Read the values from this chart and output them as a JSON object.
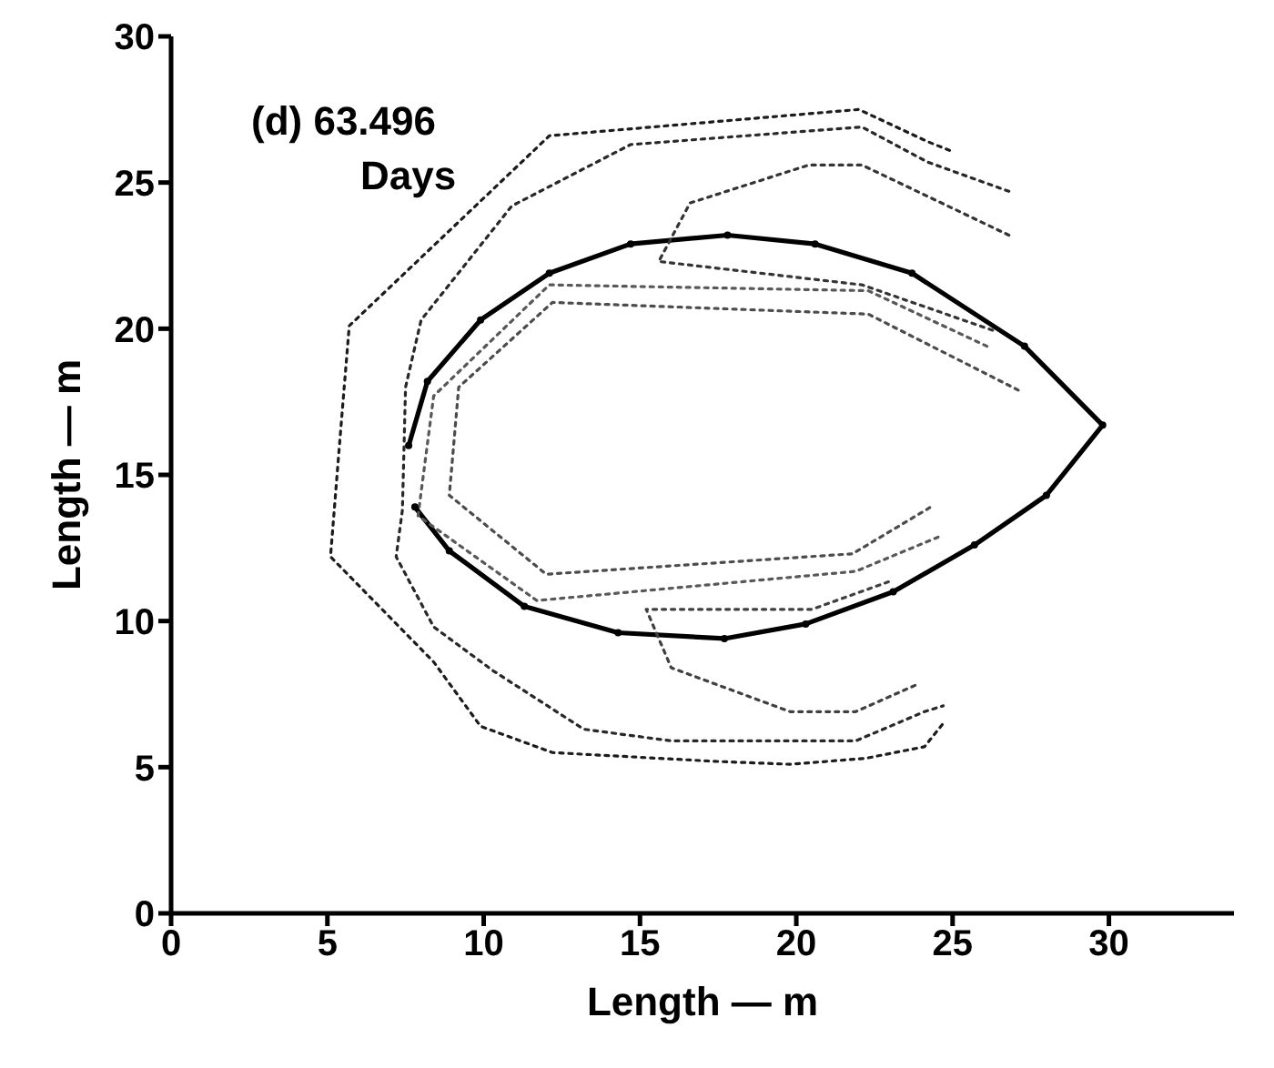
{
  "chart_data": {
    "type": "line",
    "xlabel": "Length — m",
    "ylabel": "Length — m",
    "annotations": [
      "(d) 63.496\nDays"
    ],
    "xlim": [
      0,
      34
    ],
    "ylim": [
      0,
      30
    ],
    "xticks": [
      0,
      5,
      10,
      15,
      20,
      25,
      30
    ],
    "yticks": [
      0,
      5,
      10,
      15,
      20,
      25,
      30
    ],
    "grid": false,
    "series": [
      {
        "color": "#000000",
        "line_style": "solid",
        "marker": "circle",
        "x": [
          7.6,
          8.2,
          9.9,
          12.1,
          14.7,
          17.8,
          20.6,
          23.7,
          27.3,
          29.8,
          28.0,
          25.7,
          23.1,
          20.3,
          17.7,
          14.3,
          11.3,
          8.9,
          7.8
        ],
        "values": [
          16.0,
          18.2,
          20.3,
          21.9,
          22.9,
          23.2,
          22.9,
          21.9,
          19.4,
          16.7,
          14.3,
          12.6,
          11.0,
          9.9,
          9.4,
          9.6,
          10.5,
          12.4,
          13.9
        ]
      },
      {
        "color": "#1c1c1c",
        "line_style": "dotted",
        "marker": "none",
        "x": [
          24.9,
          24.2,
          22.0,
          12.1,
          5.7,
          5.4,
          5.1,
          8.4,
          9.9,
          12.2,
          17.4,
          19.8,
          22.2,
          24.1,
          24.7
        ],
        "values": [
          26.1,
          26.4,
          27.5,
          26.6,
          20.1,
          16.2,
          12.2,
          8.6,
          6.4,
          5.5,
          5.2,
          5.1,
          5.3,
          5.7,
          6.5
        ]
      },
      {
        "color": "#282828",
        "line_style": "dotted",
        "marker": "none",
        "x": [
          26.8,
          24.2,
          22.1,
          14.7,
          10.9,
          8.0,
          7.5,
          7.4,
          7.2,
          8.4,
          10.3,
          13.2,
          16.0,
          19.8,
          21.9,
          24.1,
          24.7
        ],
        "values": [
          24.7,
          25.7,
          26.9,
          26.3,
          24.2,
          20.3,
          18.0,
          13.8,
          12.2,
          9.8,
          8.3,
          6.3,
          5.9,
          5.9,
          5.9,
          6.9,
          7.1
        ]
      },
      {
        "color": "#343434",
        "line_style": "dotted",
        "marker": "none",
        "x": [
          26.8,
          22.1,
          20.4,
          16.6,
          15.6,
          22.1,
          26.4
        ],
        "values": [
          23.2,
          25.6,
          25.6,
          24.3,
          22.3,
          21.5,
          19.9
        ]
      },
      {
        "color": "#404040",
        "line_style": "dotted",
        "marker": "none",
        "x": [
          23.8,
          21.9,
          19.8,
          16.0,
          15.2,
          20.5,
          23.1
        ],
        "values": [
          7.8,
          6.9,
          6.9,
          8.4,
          10.4,
          10.4,
          11.4
        ]
      },
      {
        "color": "#4c4c4c",
        "line_style": "dotted",
        "marker": "none",
        "x": [
          27.1,
          22.3,
          12.2,
          9.2,
          8.9,
          12.0,
          21.8,
          24.3
        ],
        "values": [
          17.9,
          20.5,
          20.9,
          18.0,
          14.3,
          11.6,
          12.3,
          13.9
        ]
      },
      {
        "color": "#585858",
        "line_style": "dotted",
        "marker": "none",
        "x": [
          26.1,
          22.3,
          12.1,
          8.4,
          7.9,
          11.7,
          21.9,
          24.6
        ],
        "values": [
          19.4,
          21.3,
          21.5,
          17.7,
          13.6,
          10.7,
          11.7,
          12.9
        ]
      }
    ]
  }
}
